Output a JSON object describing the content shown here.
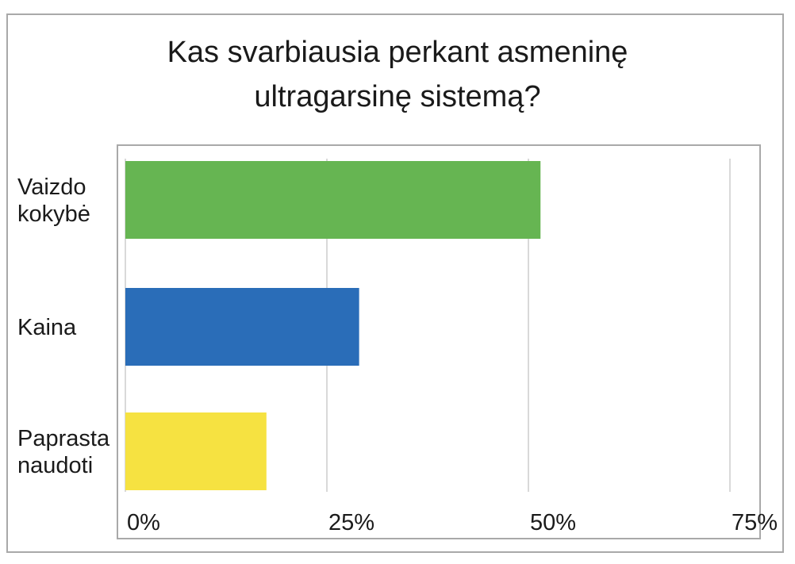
{
  "chart_data": {
    "type": "bar",
    "orientation": "horizontal",
    "title": "Kas svarbiausia perkant asmeninę ultragarsinę sistemą?",
    "title_lines": [
      "Kas svarbiausia perkant asmeninę",
      "ultragarsinę sistemą?"
    ],
    "categories": [
      {
        "lines": [
          "Vaizdo",
          "kokybė"
        ],
        "label": "Vaizdo kokybė"
      },
      {
        "lines": [
          "Kaina"
        ],
        "label": "Kaina"
      },
      {
        "lines": [
          "Paprasta",
          "naudoti"
        ],
        "label": "Paprasta naudoti"
      }
    ],
    "values": [
      51.5,
      29,
      17.5
    ],
    "colors": [
      "#66b552",
      "#2a6db8",
      "#f6e241"
    ],
    "xlim": [
      0,
      75
    ],
    "x_ticks": [
      0,
      25,
      50,
      75
    ],
    "x_tick_labels": [
      "0%",
      "25%",
      "50%",
      "75%"
    ],
    "grid": true,
    "xlabel": "",
    "ylabel": ""
  }
}
